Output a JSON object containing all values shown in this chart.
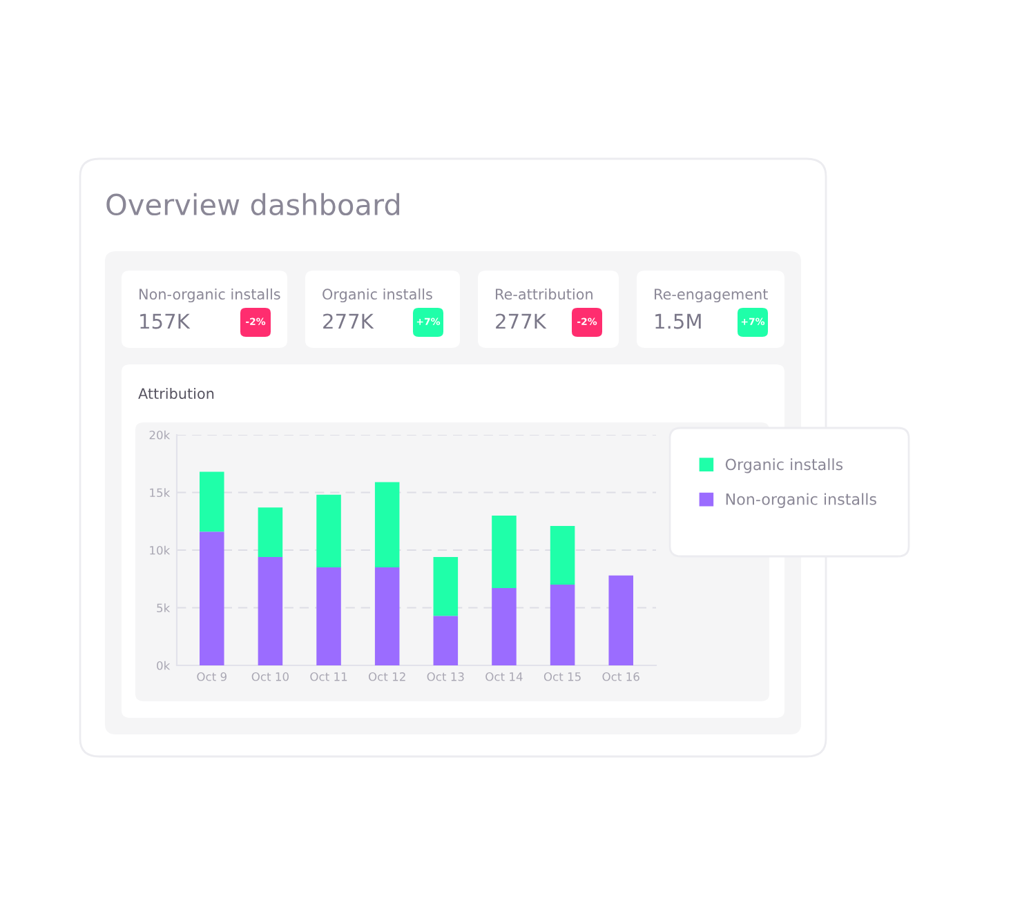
{
  "chart_data": [
    {
      "type": "other",
      "title": "Overview dashboard",
      "annotations": [
        "Non-organic installs",
        "157K",
        "-2%",
        "Organic installs",
        "277K",
        "+7%",
        "Re-attribution",
        "277K",
        "-2%",
        "Re-engagement",
        "1.5M",
        "+7%"
      ],
      "colors": [
        "#ff2d6f",
        "#1fffa9",
        "#ff2d6f",
        "#1fffa9"
      ]
    },
    {
      "type": "bar",
      "title": "Attribution",
      "stacked": true,
      "categories": [
        "Oct 9",
        "Oct 10",
        "Oct 11",
        "Oct 12",
        "Oct 13",
        "Oct 14",
        "Oct 15",
        "Oct 16"
      ],
      "series": [
        {
          "name": "Non-organic installs",
          "color": "#9b6cff",
          "values": [
            11.6,
            9.4,
            8.5,
            8.5,
            4.3,
            6.7,
            7.0,
            7.8
          ]
        },
        {
          "name": "Organic installs",
          "color": "#1fffa9",
          "values": [
            5.2,
            4.3,
            6.3,
            7.4,
            5.1,
            6.3,
            5.1,
            null
          ]
        }
      ],
      "ylim": [
        0,
        20
      ],
      "yticks": [
        {
          "value": 0,
          "label": "0k"
        },
        {
          "value": 5,
          "label": "5k"
        },
        {
          "value": 10,
          "label": "10k"
        },
        {
          "value": 15,
          "label": "15k"
        },
        {
          "value": 20,
          "label": "20k"
        }
      ],
      "grid": "y",
      "legend": "top right"
    }
  ]
}
